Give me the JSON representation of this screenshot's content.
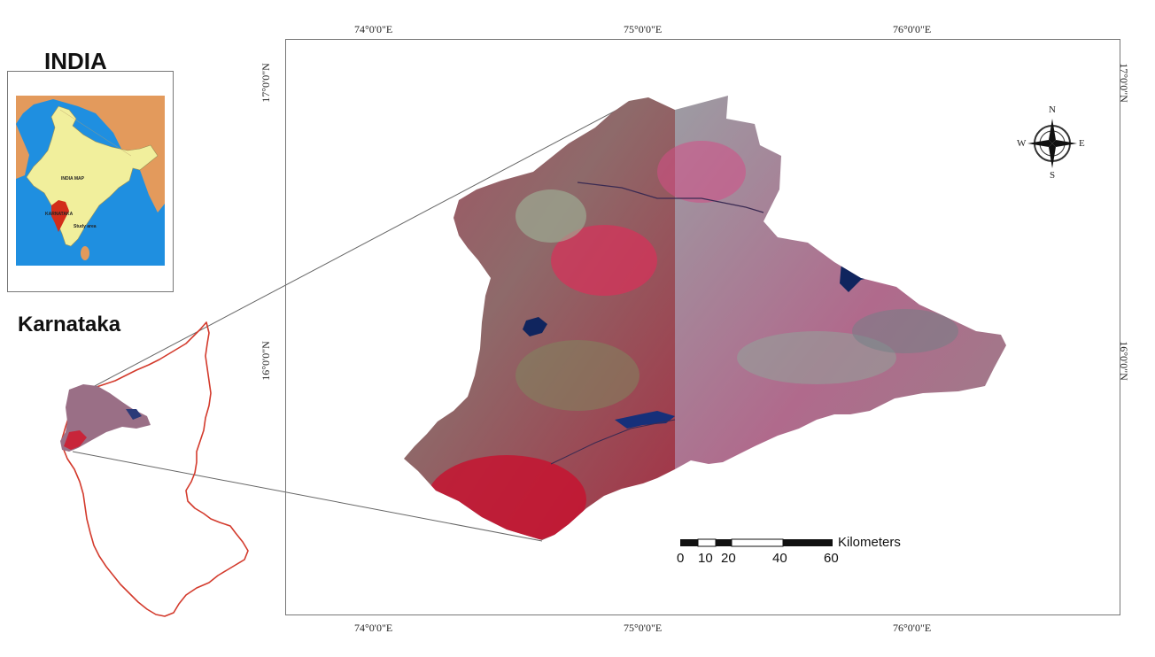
{
  "inset": {
    "title": "INDIA",
    "map_label": "INDIA MAP",
    "state_label": "KARNATAKA",
    "region_label": "Study area",
    "colors": {
      "land": "#f1ef9c",
      "sea": "#1f8fe0",
      "neighbors": "#e39a5c",
      "state": "#d22d1a"
    }
  },
  "karnataka": {
    "title": "Karnataka",
    "outline_color": "#d33a2c"
  },
  "main_map": {
    "top_labels": [
      "74°0'0\"E",
      "75°0'0\"E",
      "76°0'0\"E"
    ],
    "bottom_labels": [
      "74°0'0\"E",
      "75°0'0\"E",
      "76°0'0\"E"
    ],
    "left_labels": [
      "17°0'0\"N",
      "16°0'0\"N"
    ],
    "right_labels": [
      "17°0'0\"N",
      "16°0'0\"N"
    ]
  },
  "compass": {
    "n": "N",
    "s": "S",
    "e": "E",
    "w": "W"
  },
  "scale_bar": {
    "unit": "Kilometers",
    "ticks": [
      "0",
      "10",
      "20",
      "40",
      "60"
    ]
  }
}
